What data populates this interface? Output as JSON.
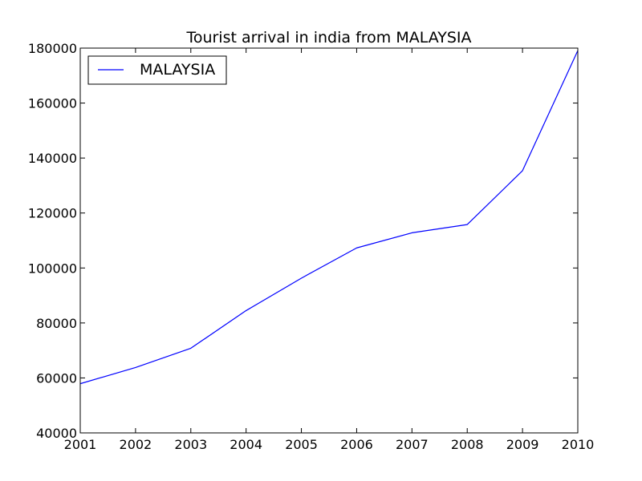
{
  "chart_data": {
    "type": "line",
    "title": "Tourist arrival in india from MALAYSIA",
    "xlabel": "",
    "ylabel": "",
    "x": [
      2001,
      2002,
      2003,
      2004,
      2005,
      2006,
      2007,
      2008,
      2009,
      2010
    ],
    "series": [
      {
        "name": "MALAYSIA",
        "color": "#0000ff",
        "values": [
          57900,
          63800,
          70800,
          84500,
          96300,
          107300,
          112800,
          115800,
          135400,
          179100
        ]
      }
    ],
    "xlim": [
      2001,
      2010
    ],
    "ylim": [
      40000,
      180000
    ],
    "xticks": [
      "2001",
      "2002",
      "2003",
      "2004",
      "2005",
      "2006",
      "2007",
      "2008",
      "2009",
      "2010"
    ],
    "yticks": [
      "40000",
      "60000",
      "80000",
      "100000",
      "120000",
      "140000",
      "160000",
      "180000"
    ],
    "grid": false,
    "legend_position": "upper-left"
  }
}
